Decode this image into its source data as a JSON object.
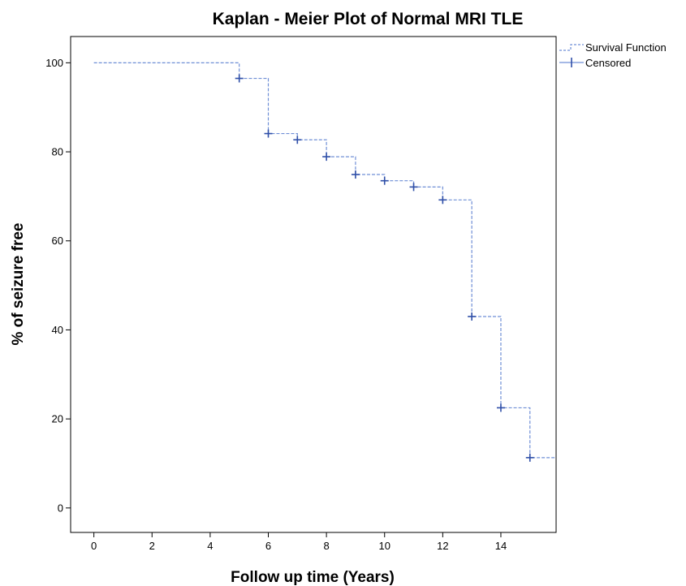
{
  "chart_data": {
    "type": "line",
    "title": "Kaplan - Meier Plot of Normal MRI TLE",
    "xlabel": "Follow up time (Years)",
    "ylabel": "% of seizure free",
    "xlim": [
      -0.8,
      15.9
    ],
    "ylim": [
      -5.5,
      105.9
    ],
    "x_ticks": [
      0,
      2,
      4,
      6,
      8,
      10,
      12,
      14
    ],
    "y_ticks": [
      0,
      20,
      40,
      60,
      80,
      100
    ],
    "grid": false,
    "legend_position": "top-right, outside plot area",
    "colors": {
      "survival": "#6f8fd6",
      "censored": "#2f4fa8",
      "frame": "#000000"
    },
    "series": [
      {
        "name": "Survival Function",
        "style": "step, dashed",
        "x": [
          0,
          5,
          6,
          7,
          8,
          9,
          10,
          11,
          12,
          13,
          14,
          15,
          15.9
        ],
        "y": [
          100,
          96.5,
          84.1,
          82.7,
          78.9,
          74.9,
          73.5,
          72.1,
          69.2,
          43.0,
          22.5,
          11.3,
          11.3
        ]
      },
      {
        "name": "Censored",
        "style": "plus markers",
        "x": [
          5,
          6,
          7,
          8,
          9,
          10,
          11,
          12,
          13,
          14,
          15
        ],
        "y": [
          96.5,
          84.1,
          82.7,
          78.9,
          74.9,
          73.5,
          72.1,
          69.2,
          43.0,
          22.5,
          11.3
        ]
      }
    ]
  }
}
